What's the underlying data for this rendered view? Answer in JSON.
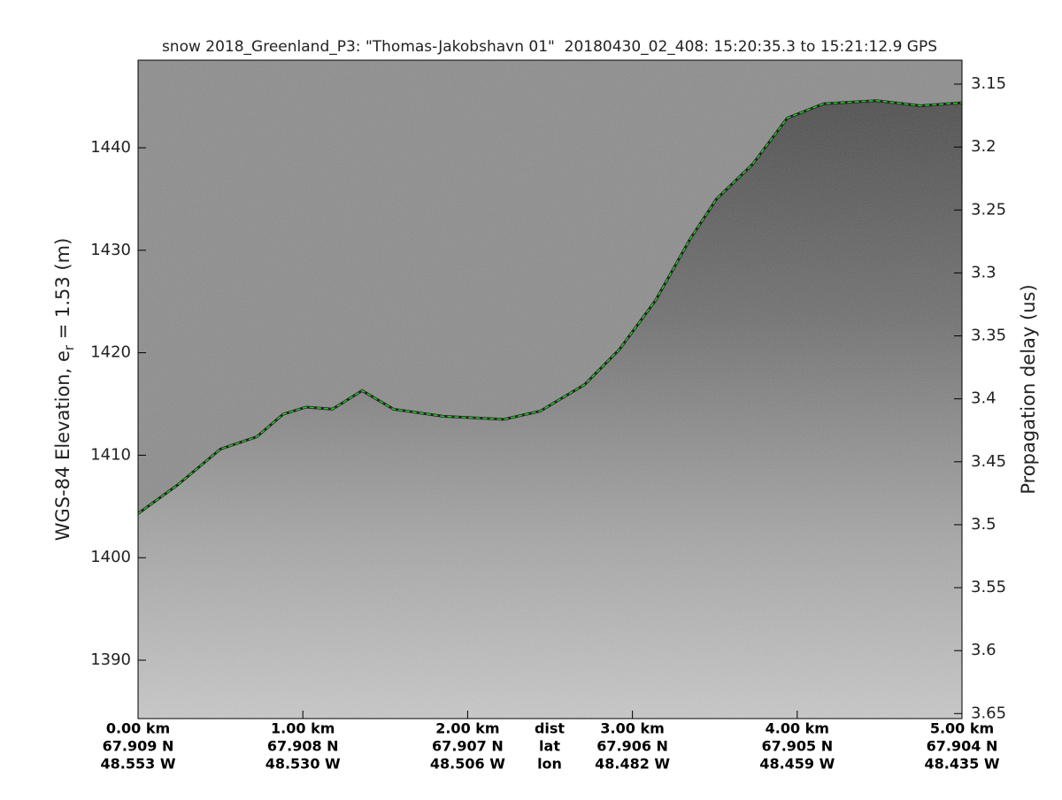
{
  "chart_data": {
    "type": "echogram",
    "title": "snow 2018_Greenland_P3: \"Thomas-Jakobshavn 01\"  20180430_02_408: 15:20:35.3 to 15:21:12.9 GPS",
    "ylabel": [
      "WGS-84 Elevation, e",
      "r",
      " = 1.53 (m)"
    ],
    "y2label": "Propagation delay (us)",
    "xlim": [
      0,
      5
    ],
    "ylim": [
      1384.3,
      1448.55
    ],
    "y2lim": [
      3.131,
      3.654
    ],
    "yticks": [
      1390,
      1400,
      1410,
      1420,
      1430,
      1440
    ],
    "y2ticks": [
      3.15,
      3.2,
      3.25,
      3.3,
      3.35,
      3.4,
      3.45,
      3.5,
      3.55,
      3.6,
      3.65
    ],
    "xticks": [
      {
        "value": 0,
        "label": "0.00 km"
      },
      {
        "value": 1,
        "label": "1.00 km"
      },
      {
        "value": 2,
        "label": "2.00 km"
      },
      {
        "value": 3,
        "label": "3.00 km"
      },
      {
        "value": 4,
        "label": "4.00 km"
      },
      {
        "value": 5,
        "label": "5.00 km"
      }
    ],
    "xtick_lat": [
      "67.909 N",
      "67.908 N",
      "67.907 N",
      "67.906 N",
      "67.905 N",
      "67.904 N"
    ],
    "xtick_lon": [
      "48.553 W",
      "48.530 W",
      "48.506 W",
      "48.482 W",
      "48.459 W",
      "48.435 W"
    ],
    "row_labels": [
      "dist",
      "lat",
      "lon"
    ],
    "series": [
      {
        "name": "surface",
        "color": "#22cc22",
        "x": [
          0,
          0.24,
          0.5,
          0.72,
          0.88,
          1.02,
          1.18,
          1.36,
          1.55,
          1.85,
          2.22,
          2.44,
          2.71,
          2.92,
          3.14,
          3.35,
          3.51,
          3.73,
          3.94,
          4.16,
          4.48,
          4.75,
          5.0
        ],
        "values": [
          1404.3,
          1407.1,
          1410.6,
          1411.8,
          1414.0,
          1414.7,
          1414.5,
          1416.3,
          1414.5,
          1413.8,
          1413.5,
          1414.3,
          1416.9,
          1420.3,
          1425.1,
          1431.1,
          1435.0,
          1438.4,
          1442.9,
          1444.3,
          1444.6,
          1444.1,
          1444.4
        ]
      }
    ]
  }
}
